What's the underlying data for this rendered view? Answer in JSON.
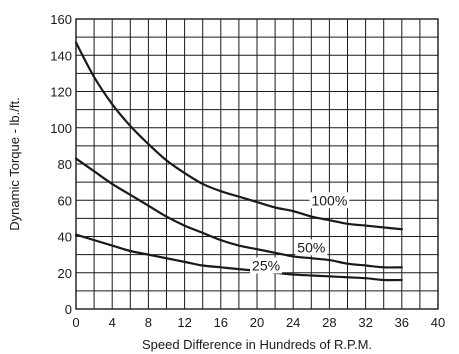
{
  "chart_data": {
    "type": "line",
    "title": "",
    "xlabel": "Speed Difference in Hundreds of R.P.M.",
    "ylabel": "Dynamic Torque - lb./ft.",
    "xlim": [
      0,
      40
    ],
    "ylim": [
      0,
      160
    ],
    "xticks": [
      "0",
      "4",
      "8",
      "12",
      "16",
      "20",
      "24",
      "28",
      "32",
      "36",
      "40"
    ],
    "yticks": [
      "0",
      "20",
      "40",
      "60",
      "80",
      "100",
      "120",
      "140",
      "160"
    ],
    "x_gridlines_step": 2,
    "y_gridlines_step": 10,
    "grid": true,
    "legend": "inline labels on curves",
    "series": [
      {
        "name": "100%",
        "x": [
          0,
          2,
          4,
          6,
          8,
          10,
          12,
          14,
          16,
          18,
          20,
          22,
          24,
          26,
          28,
          30,
          32,
          34,
          36
        ],
        "y": [
          147,
          128,
          113,
          101,
          91,
          82,
          75,
          69,
          65,
          62,
          59,
          56,
          54,
          51,
          49,
          47,
          46,
          45,
          44
        ]
      },
      {
        "name": "50%",
        "x": [
          0,
          2,
          4,
          6,
          8,
          10,
          12,
          14,
          16,
          18,
          20,
          22,
          24,
          26,
          28,
          30,
          32,
          34,
          36
        ],
        "y": [
          83,
          76,
          69,
          63,
          57,
          51,
          46,
          42,
          38,
          35,
          33,
          31,
          29,
          28,
          27,
          25,
          24,
          23,
          23
        ]
      },
      {
        "name": "25%",
        "x": [
          0,
          2,
          4,
          6,
          8,
          10,
          12,
          14,
          16,
          18,
          20,
          22,
          24,
          26,
          28,
          30,
          32,
          34,
          36
        ],
        "y": [
          41,
          38,
          35,
          32,
          30,
          28,
          26,
          24,
          23,
          22,
          21,
          20,
          19,
          18.5,
          18,
          17.5,
          17,
          16,
          16
        ]
      }
    ],
    "label_positions": [
      {
        "series": "100%",
        "x": 28,
        "y": 60
      },
      {
        "series": "50%",
        "x": 26,
        "y": 34
      },
      {
        "series": "25%",
        "x": 21,
        "y": 24
      }
    ],
    "colors": {
      "line": "#1a1a1a",
      "grid": "#1a1a1a",
      "background": "#ffffff"
    }
  }
}
